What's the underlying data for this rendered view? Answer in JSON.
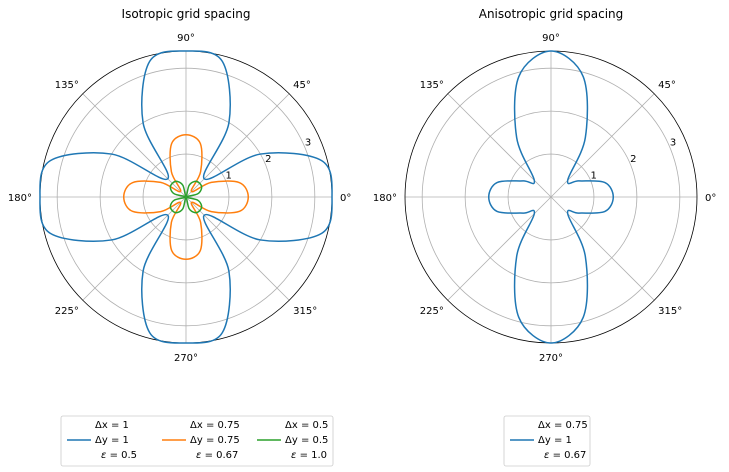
{
  "chart_data": [
    {
      "type": "polar",
      "title": "Isotropic grid spacing",
      "angle_ticks": [
        "0°",
        "45°",
        "90°",
        "135°",
        "180°",
        "225°",
        "270°",
        "315°"
      ],
      "radial_ticks": [
        "1",
        "2",
        "3"
      ],
      "radial_tick_values": [
        1,
        2,
        3
      ],
      "rmax": 3.4,
      "grid": true,
      "series": [
        {
          "dx": "1",
          "dy": "1",
          "eps": "0.5",
          "color": "#1f77b4",
          "theta_deg": [
            0,
            15,
            30,
            45,
            60,
            75,
            90,
            105,
            120,
            135,
            150,
            165,
            180,
            195,
            210,
            225,
            240,
            255,
            270,
            285,
            300,
            315,
            330,
            345
          ],
          "r": [
            3.4,
            3.27,
            2.0,
            0.6,
            2.0,
            3.27,
            3.4,
            3.27,
            2.0,
            0.6,
            2.0,
            3.27,
            3.4,
            3.27,
            2.0,
            0.6,
            2.0,
            3.27,
            3.4,
            3.27,
            2.0,
            0.6,
            2.0,
            3.27
          ]
        },
        {
          "dx": "0.75",
          "dy": "0.75",
          "eps": "0.67",
          "color": "#ff7f0e",
          "theta_deg": [
            0,
            15,
            30,
            45,
            60,
            75,
            90,
            105,
            120,
            135,
            150,
            165,
            180,
            195,
            210,
            225,
            240,
            255,
            270,
            285,
            300,
            315,
            330,
            345
          ],
          "r": [
            1.45,
            1.29,
            0.68,
            0.18,
            0.68,
            1.29,
            1.45,
            1.29,
            0.68,
            0.18,
            0.68,
            1.29,
            1.45,
            1.29,
            0.68,
            0.18,
            0.68,
            1.29,
            1.45,
            1.29,
            0.68,
            0.18,
            0.68,
            1.29
          ]
        },
        {
          "dx": "0.5",
          "dy": "0.5",
          "eps": "1.0",
          "color": "#2ca02c",
          "theta_deg": [
            0,
            15,
            30,
            45,
            60,
            75,
            90,
            105,
            120,
            135,
            150,
            165,
            180,
            195,
            210,
            225,
            240,
            255,
            270,
            285,
            300,
            315,
            330,
            345
          ],
          "r": [
            0.02,
            0.28,
            0.42,
            0.45,
            0.42,
            0.28,
            0.02,
            0.28,
            0.42,
            0.45,
            0.42,
            0.28,
            0.02,
            0.28,
            0.42,
            0.45,
            0.42,
            0.28,
            0.02,
            0.28,
            0.42,
            0.45,
            0.42,
            0.28
          ]
        }
      ]
    },
    {
      "type": "polar",
      "title": "Anisotropic grid spacing",
      "angle_ticks": [
        "0°",
        "45°",
        "90°",
        "135°",
        "180°",
        "225°",
        "270°",
        "315°"
      ],
      "radial_ticks": [
        "1",
        "2",
        "3"
      ],
      "radial_tick_values": [
        1,
        2,
        3
      ],
      "rmax": 3.4,
      "grid": true,
      "series": [
        {
          "dx": "0.75",
          "dy": "1",
          "eps": "0.67",
          "color": "#1f77b4",
          "theta_deg": [
            0,
            15,
            30,
            45,
            60,
            75,
            90,
            105,
            120,
            135,
            150,
            165,
            180,
            195,
            210,
            225,
            240,
            255,
            270,
            285,
            300,
            315,
            330,
            345
          ],
          "r": [
            1.45,
            1.3,
            0.75,
            0.55,
            1.6,
            2.9,
            3.4,
            2.9,
            1.6,
            0.55,
            0.75,
            1.3,
            1.45,
            1.3,
            0.75,
            0.55,
            1.6,
            2.9,
            3.4,
            2.9,
            1.6,
            0.55,
            0.75,
            1.3
          ]
        }
      ]
    }
  ],
  "legend_labels": {
    "dx": "Δx = ",
    "dy": "Δy = ",
    "eps": " = "
  },
  "legend_symbol_eps": "ε"
}
